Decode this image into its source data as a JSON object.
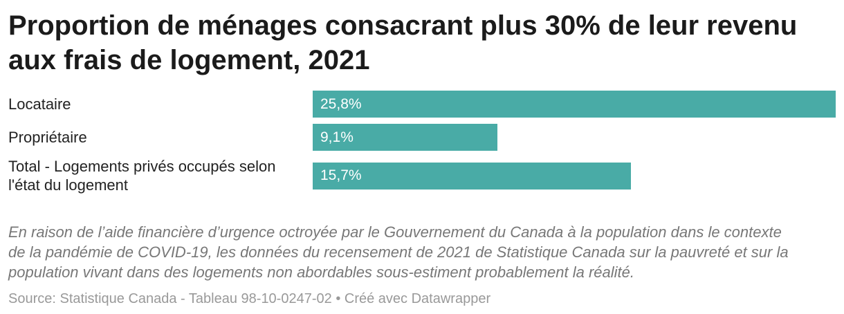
{
  "colors": {
    "bar": "#49aba6",
    "title": "#1b1b1b",
    "label": "#222222",
    "value_label": "#ffffff",
    "note": "#777777",
    "source": "#999999",
    "background": "#ffffff"
  },
  "chart_data": {
    "type": "bar",
    "title": "Proportion de ménages consacrant plus 30% de leur revenu aux frais de logement, 2021",
    "categories": [
      "Locataire",
      "Propriétaire",
      "Total - Logements privés occupés selon l'état du logement"
    ],
    "values": [
      25.8,
      9.1,
      15.7
    ],
    "value_labels": [
      "25,8%",
      "9,1%",
      "15,7%"
    ],
    "xlim": [
      0,
      25.8
    ],
    "grid": false
  },
  "notes": {
    "text": "En raison de l’aide financière d’urgence octroyée par le Gouvernement du Canada à la population dans le contexte de la pandémie de COVID-19, les données du recensement de 2021 de Statistique Canada sur la pauvreté et sur la population vivant dans des logements non abordables sous-estiment probablement la réalité."
  },
  "footer": {
    "source_label": "Source:",
    "source_name": "Statistique Canada - Tableau 98-10-0247-02",
    "separator": "•",
    "made_with": "Créé avec Datawrapper"
  }
}
